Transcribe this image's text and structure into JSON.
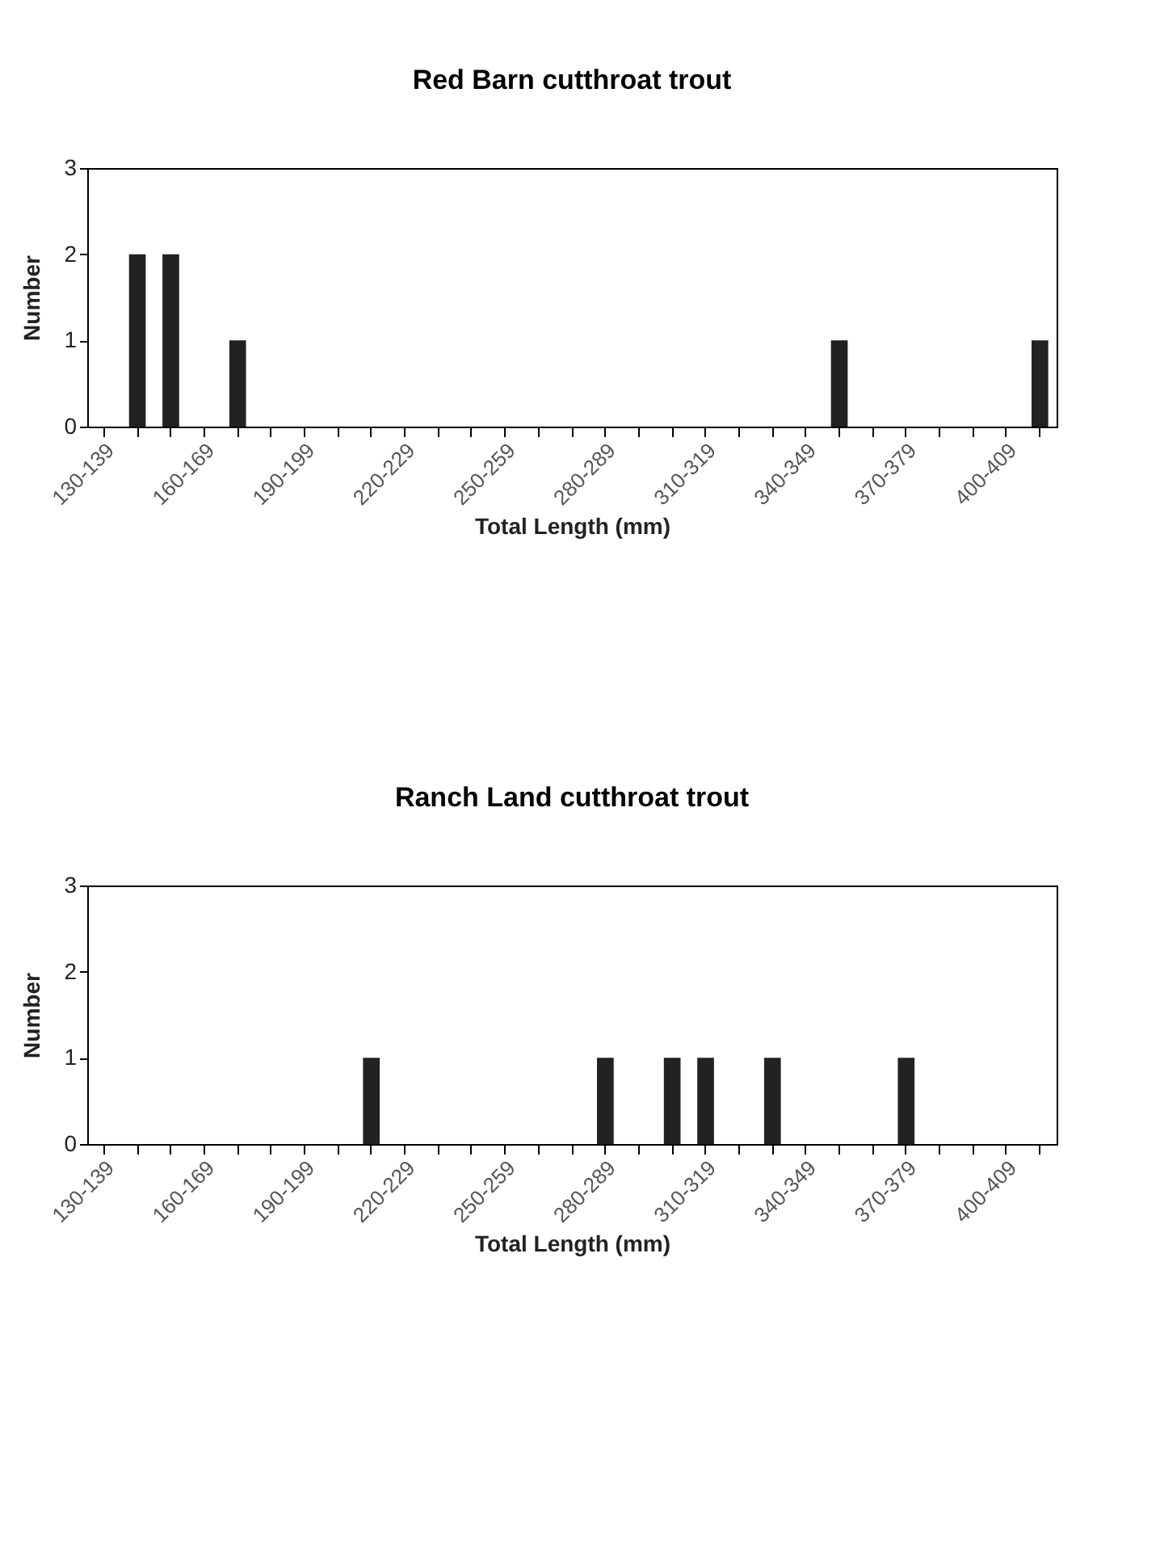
{
  "chart_data": [
    {
      "type": "bar",
      "title": "Red Barn cutthroat trout",
      "xlabel": "Total Length (mm)",
      "ylabel": "Number",
      "categories": [
        "130-139",
        null,
        null,
        "160-169",
        null,
        null,
        "190-199",
        null,
        null,
        "220-229",
        null,
        null,
        "250-259",
        null,
        null,
        "280-289",
        null,
        null,
        "310-319",
        null,
        null,
        "340-349",
        null,
        null,
        "370-379",
        null,
        null,
        "400-409",
        null
      ],
      "values": [
        0,
        2,
        2,
        0,
        1,
        0,
        0,
        0,
        0,
        0,
        0,
        0,
        0,
        0,
        0,
        0,
        0,
        0,
        0,
        0,
        0,
        0,
        1,
        0,
        0,
        0,
        0,
        0,
        1
      ],
      "color": "#222222",
      "ylim": [
        0,
        3
      ],
      "yticks": [
        0,
        1,
        2,
        3
      ],
      "grid": false
    },
    {
      "type": "bar",
      "title": "Ranch Land cutthroat trout",
      "xlabel": "Total Length (mm)",
      "ylabel": "Number",
      "categories": [
        "130-139",
        null,
        null,
        "160-169",
        null,
        null,
        "190-199",
        null,
        null,
        "220-229",
        null,
        null,
        "250-259",
        null,
        null,
        "280-289",
        null,
        null,
        "310-319",
        null,
        null,
        "340-349",
        null,
        null,
        "370-379",
        null,
        null,
        "400-409",
        null
      ],
      "values": [
        0,
        0,
        0,
        0,
        0,
        0,
        0,
        0,
        1,
        0,
        0,
        0,
        0,
        0,
        0,
        1,
        0,
        1,
        1,
        0,
        1,
        0,
        0,
        0,
        1,
        0,
        0,
        0,
        0
      ],
      "color": "#222222",
      "ylim": [
        0,
        3
      ],
      "yticks": [
        0,
        1,
        2,
        3
      ],
      "grid": false
    }
  ]
}
